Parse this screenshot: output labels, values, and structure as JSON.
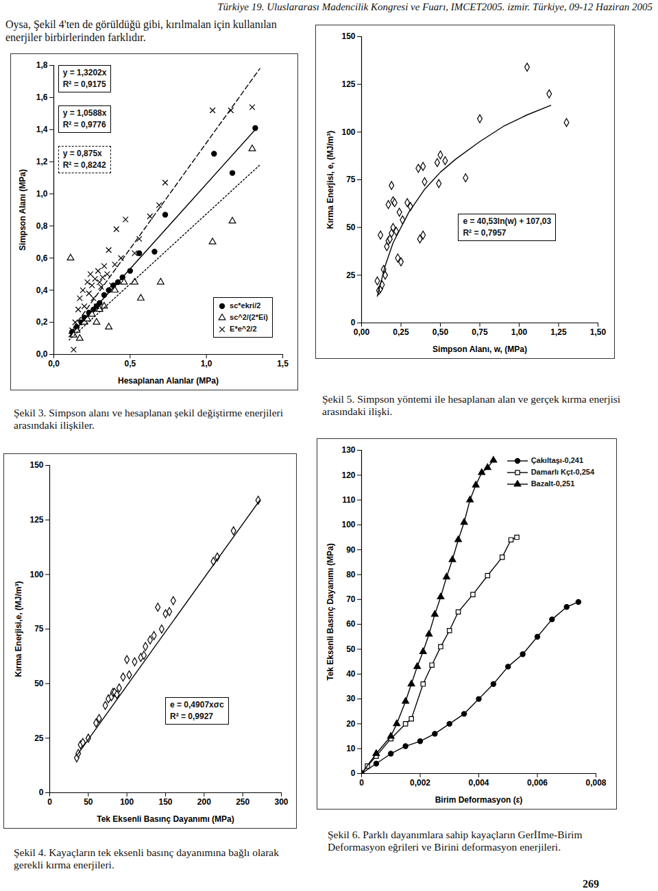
{
  "header": "Türkiye 19. Uluslararası Madencilik Kongresi ve Fuarı, IMCET2005. izmir. Türkiye, 09-12 Haziran 2005",
  "paragraph": "Oysa, Şekil 4'ten de görüldüğü gibi, kırılmalan için kullanılan enerjiler birbirlerinden farklıdır.",
  "page_number": "269",
  "chart_data": [
    {
      "type": "scatter",
      "caption": "Şekil 3. Simpson alanı ve hesaplanan şekil değiştirme enerjileri arasındaki ilişkiler.",
      "x_label": "Hesaplanan Alanlar (MPa)",
      "y_label": "Simpson Alanı (MPa)",
      "xlim": [
        0,
        1.5
      ],
      "xticks": [
        {
          "value": 0,
          "label": "0,0"
        },
        {
          "value": 0.5,
          "label": "0,5"
        },
        {
          "value": 1,
          "label": "1,0"
        },
        {
          "value": 1.5,
          "label": "1,5"
        }
      ],
      "ylim": [
        0,
        1.8
      ],
      "yticks": [
        {
          "value": 0,
          "label": "0,0"
        },
        {
          "value": 0.2,
          "label": "0,2"
        },
        {
          "value": 0.4,
          "label": "0,4"
        },
        {
          "value": 0.6,
          "label": "0,6"
        },
        {
          "value": 0.8,
          "label": "0,8"
        },
        {
          "value": 1,
          "label": "1,0"
        },
        {
          "value": 1.2,
          "label": "1,2"
        },
        {
          "value": 1.4,
          "label": "1,4"
        },
        {
          "value": 1.6,
          "label": "1,6"
        },
        {
          "value": 1.8,
          "label": "1,8"
        }
      ],
      "grid": false,
      "legend": "bottom-right",
      "annotations": [
        [
          "y = 1,3202x",
          "R² = 0,9175"
        ],
        [
          "y = 1,0588x",
          "R² = 0,9776"
        ],
        [
          "y = 0,875x",
          "R² = 0,8242"
        ]
      ],
      "series": [
        {
          "name": "sc*ekri/2",
          "type": "scatter",
          "marker": "circle",
          "color": "#000000",
          "x": [
            0.12,
            0.15,
            0.18,
            0.2,
            0.23,
            0.26,
            0.28,
            0.3,
            0.33,
            0.36,
            0.39,
            0.42,
            0.45,
            0.5,
            0.56,
            0.66,
            0.73,
            1.05,
            1.17,
            1.32
          ],
          "values": [
            0.14,
            0.17,
            0.2,
            0.23,
            0.26,
            0.28,
            0.3,
            0.32,
            0.37,
            0.4,
            0.43,
            0.45,
            0.48,
            0.52,
            0.63,
            0.64,
            0.87,
            1.25,
            1.13,
            1.41
          ]
        },
        {
          "name": "sc^2/(2*Ei)",
          "type": "scatter",
          "marker": "triangle-open",
          "color": "#000000",
          "x": [
            0.11,
            0.13,
            0.15,
            0.17,
            0.2,
            0.22,
            0.25,
            0.28,
            0.3,
            0.33,
            0.36,
            0.4,
            0.46,
            0.53,
            0.57,
            0.7,
            1.04,
            1.17,
            1.3
          ],
          "values": [
            0.6,
            0.12,
            0.15,
            0.1,
            0.2,
            0.22,
            0.25,
            0.2,
            0.28,
            0.3,
            0.17,
            0.4,
            0.45,
            0.45,
            0.35,
            0.45,
            0.7,
            0.83,
            1.28
          ]
        },
        {
          "name": "E*e^2/2",
          "type": "scatter",
          "marker": "x",
          "color": "#000000",
          "x": [
            0.13,
            0.12,
            0.14,
            0.16,
            0.17,
            0.19,
            0.2,
            0.22,
            0.23,
            0.24,
            0.25,
            0.26,
            0.27,
            0.28,
            0.29,
            0.3,
            0.31,
            0.32,
            0.33,
            0.35,
            0.36,
            0.38,
            0.4,
            0.41,
            0.44,
            0.47,
            0.53,
            0.56,
            0.63,
            0.69,
            0.73,
            1.04,
            1.16,
            1.3
          ],
          "values": [
            0.03,
            0.15,
            0.2,
            0.28,
            0.35,
            0.4,
            0.3,
            0.45,
            0.38,
            0.5,
            0.43,
            0.35,
            0.47,
            0.3,
            0.52,
            0.45,
            0.42,
            0.48,
            0.55,
            0.5,
            0.65,
            0.43,
            0.56,
            0.78,
            0.6,
            0.84,
            0.63,
            0.72,
            0.86,
            0.93,
            1.07,
            1.52,
            1.52,
            1.54
          ]
        },
        {
          "type": "line",
          "line_style": "dashed",
          "color": "#000000",
          "x": [
            0.1,
            1.35
          ],
          "values": [
            0.13,
            1.78
          ]
        },
        {
          "type": "line",
          "line_style": "solid",
          "color": "#000000",
          "x": [
            0.1,
            1.32
          ],
          "values": [
            0.11,
            1.4
          ]
        },
        {
          "type": "line",
          "line_style": "dotted",
          "color": "#000000",
          "x": [
            0.1,
            1.35
          ],
          "values": [
            0.09,
            1.18
          ]
        }
      ]
    },
    {
      "type": "scatter",
      "caption": "Şekil 5. Simpson yöntemi ile hesaplanan alan ve gerçek kırma enerjisi arasındaki ilişki.",
      "x_label": "Simpson Alanı, w, (MPa)",
      "y_label": "Kırma Enerjisi, e, (MJ/m³)",
      "xlim": [
        0,
        1.5
      ],
      "xticks": [
        {
          "value": 0,
          "label": "0,00"
        },
        {
          "value": 0.25,
          "label": "0,25"
        },
        {
          "value": 0.5,
          "label": "0,50"
        },
        {
          "value": 0.75,
          "label": "0,75"
        },
        {
          "value": 1,
          "label": "1,00"
        },
        {
          "value": 1.25,
          "label": "1,25"
        },
        {
          "value": 1.5,
          "label": "1,50"
        }
      ],
      "ylim": [
        0,
        150
      ],
      "yticks": [
        0,
        25,
        50,
        75,
        100,
        125,
        150
      ],
      "grid": false,
      "annotations": [
        [
          "e = 40,53ln(w) + 107,03",
          "R² = 0,7957"
        ]
      ],
      "series": [
        {
          "type": "scatter",
          "marker": "diamond-open",
          "color": "#000000",
          "x": [
            0.1,
            0.11,
            0.12,
            0.13,
            0.14,
            0.12,
            0.15,
            0.16,
            0.17,
            0.18,
            0.17,
            0.19,
            0.2,
            0.21,
            0.2,
            0.19,
            0.22,
            0.23,
            0.25,
            0.26,
            0.24,
            0.29,
            0.31,
            0.36,
            0.39,
            0.4,
            0.37,
            0.39,
            0.48,
            0.5,
            0.53,
            0.49,
            0.66,
            0.75,
            1.05,
            1.19,
            1.3
          ],
          "values": [
            22,
            17,
            18,
            20,
            28,
            46,
            25,
            40,
            43,
            44,
            62,
            72,
            64,
            63,
            50,
            47,
            48,
            34,
            32,
            54,
            58,
            63,
            61,
            81,
            82,
            74,
            44,
            46,
            84,
            88,
            85,
            73,
            76,
            107,
            134,
            120,
            105
          ]
        },
        {
          "type": "line",
          "line_style": "solid",
          "color": "#000000",
          "x": [
            0.1,
            0.15,
            0.2,
            0.3,
            0.4,
            0.5,
            0.6,
            0.75,
            0.9,
            1.05,
            1.2
          ],
          "values": [
            14,
            30,
            42,
            58,
            70,
            79,
            86,
            95,
            103,
            109,
            114
          ]
        }
      ]
    },
    {
      "type": "scatter",
      "caption": "Şekil 4. Kayaçların tek eksenli basınç dayanımına bağlı olarak gerekli kırma enerjileri.",
      "x_label": "Tek Eksenli Basınç Dayanımı (MPa)",
      "y_label": "Kırma Enerjisi,e, (MJ/m³)",
      "xlim": [
        0,
        300
      ],
      "xticks": [
        0,
        50,
        100,
        150,
        200,
        250,
        300
      ],
      "ylim": [
        0,
        150
      ],
      "yticks": [
        0,
        25,
        50,
        75,
        100,
        125,
        150
      ],
      "grid": false,
      "annotations": [
        [
          "e = 0,4907xσc",
          "R² = 0,9927"
        ]
      ],
      "series": [
        {
          "type": "scatter",
          "marker": "diamond-open",
          "color": "#000000",
          "x": [
            35,
            37,
            40,
            43,
            50,
            60,
            64,
            72,
            76,
            80,
            82,
            84,
            87,
            90,
            95,
            100,
            103,
            110,
            118,
            122,
            124,
            130,
            135,
            140,
            145,
            150,
            155,
            160,
            212,
            217,
            238,
            270
          ],
          "values": [
            16,
            18,
            22,
            23,
            25,
            32,
            34,
            40,
            43,
            44,
            46,
            46,
            45,
            48,
            53,
            61,
            54,
            60,
            62,
            63,
            67,
            70,
            72,
            85,
            75,
            82,
            83,
            88,
            106,
            108,
            120,
            134
          ]
        },
        {
          "type": "line",
          "line_style": "solid",
          "color": "#000000",
          "x": [
            35,
            272
          ],
          "values": [
            17,
            134
          ]
        }
      ]
    },
    {
      "type": "line",
      "caption": "Şekil 6. Parklı dayanımlara sahip kayaçların GerİIme-Birim Deformasyon eğrileri ve Birini deformasyon enerjileri.",
      "x_label": "Birim Deformasyon (ε)",
      "y_label": "Tek Eksenli Basınç Dayanımı (MPa)",
      "xlim": [
        0,
        0.008
      ],
      "xticks": [
        0,
        {
          "value": 0.002,
          "label": "0,002"
        },
        {
          "value": 0.004,
          "label": "0,004"
        },
        {
          "value": 0.006,
          "label": "0,006"
        },
        {
          "value": 0.008,
          "label": "0,008"
        }
      ],
      "ylim": [
        0,
        130
      ],
      "yticks": [
        0,
        10,
        20,
        30,
        40,
        50,
        60,
        70,
        80,
        90,
        100,
        110,
        120,
        130
      ],
      "grid": false,
      "legend": "top-right",
      "series": [
        {
          "name": "Çakıltaşı-0,241",
          "type": "line",
          "marker": "circle",
          "color": "#000000",
          "x": [
            0,
            0.0005,
            0.001,
            0.0015,
            0.002,
            0.0025,
            0.003,
            0.0035,
            0.004,
            0.0045,
            0.005,
            0.0055,
            0.006,
            0.0065,
            0.007,
            0.0074
          ],
          "values": [
            0,
            4,
            8,
            11,
            13,
            16,
            20,
            24,
            30,
            36,
            43,
            48,
            55,
            62,
            67,
            69
          ]
        },
        {
          "name": "Damarlı Kçt-0,254",
          "type": "line",
          "marker": "square-open",
          "color": "#000000",
          "x": [
            0,
            0.0002,
            0.0005,
            0.001,
            0.0015,
            0.0017,
            0.0021,
            0.0024,
            0.0027,
            0.003,
            0.0033,
            0.0038,
            0.0043,
            0.0048,
            0.0051,
            0.0053
          ],
          "values": [
            0,
            3,
            7,
            14,
            20,
            22,
            36,
            43.6,
            51,
            57.5,
            65,
            72,
            79.6,
            87,
            94,
            95
          ]
        },
        {
          "name": "Bazalt-0,251",
          "type": "line",
          "marker": "triangle",
          "color": "#000000",
          "x": [
            0,
            0.0005,
            0.001,
            0.0012,
            0.0015,
            0.0017,
            0.0019,
            0.0021,
            0.0023,
            0.0025,
            0.0027,
            0.0029,
            0.0031,
            0.0033,
            0.0035,
            0.0037,
            0.0039,
            0.0041,
            0.0043,
            0.0045
          ],
          "values": [
            0,
            8,
            15,
            20,
            29,
            36,
            43,
            49,
            56,
            64,
            71,
            79,
            86,
            94,
            101,
            110,
            116,
            121,
            123,
            126
          ]
        }
      ]
    }
  ]
}
